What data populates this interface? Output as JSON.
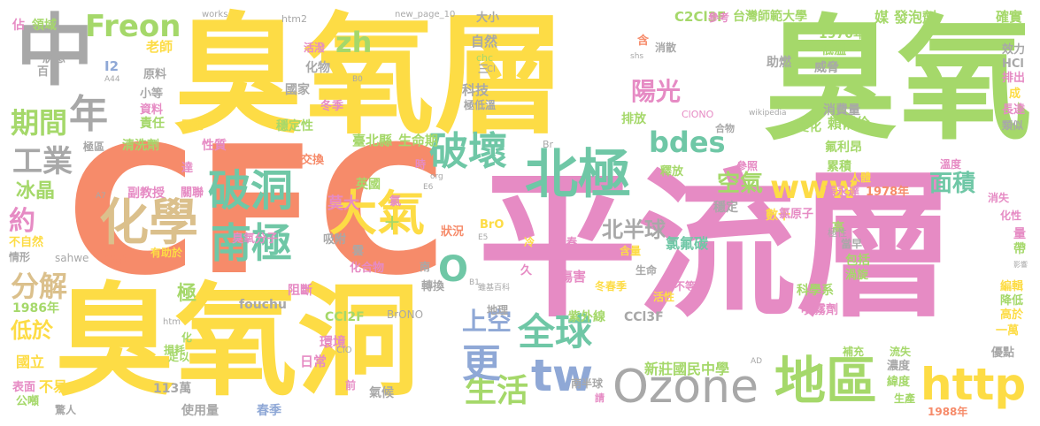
{
  "palette": {
    "yellow": "#fddc45",
    "green": "#a5d86a",
    "pink": "#e68bc4",
    "orange": "#f68b6a",
    "gray": "#a8a8a8",
    "blue": "#8fa8d6",
    "teal": "#6fc7a6",
    "tan": "#dbc08c"
  },
  "words": [
    {
      "text": "臭氧層",
      "c": "yellow"
    },
    {
      "text": "臭氧",
      "c": "green"
    },
    {
      "text": "CFC",
      "c": "orange"
    },
    {
      "text": "平流層",
      "c": "pink"
    },
    {
      "text": "臭氧洞",
      "c": "yellow"
    },
    {
      "text": "中",
      "c": "gray"
    },
    {
      "text": "年",
      "c": "gray"
    },
    {
      "text": "期間",
      "c": "green"
    },
    {
      "text": "工業",
      "c": "gray"
    },
    {
      "text": "化學",
      "c": "tan"
    },
    {
      "text": "破洞",
      "c": "teal"
    },
    {
      "text": "南極",
      "c": "teal"
    },
    {
      "text": "大氣",
      "c": "yellow"
    },
    {
      "text": "破壞",
      "c": "teal"
    },
    {
      "text": "北極",
      "c": "teal"
    },
    {
      "text": "全球",
      "c": "teal"
    },
    {
      "text": "Ozone",
      "c": "gray"
    },
    {
      "text": "tw",
      "c": "blue"
    },
    {
      "text": "www",
      "c": "yellow"
    },
    {
      "text": "http",
      "c": "yellow"
    },
    {
      "text": "地區",
      "c": "green"
    },
    {
      "text": "Freon",
      "c": "green"
    },
    {
      "text": "bdes",
      "c": "teal"
    },
    {
      "text": "zh",
      "c": "green"
    },
    {
      "text": "陽光",
      "c": "pink"
    },
    {
      "text": "生活",
      "c": "green"
    },
    {
      "text": "更",
      "c": "blue"
    },
    {
      "text": "上空",
      "c": "blue"
    },
    {
      "text": "冰晶",
      "c": "green"
    },
    {
      "text": "約",
      "c": "pink"
    },
    {
      "text": "分解",
      "c": "tan"
    },
    {
      "text": "低於",
      "c": "yellow"
    },
    {
      "text": "面積",
      "c": "teal"
    },
    {
      "text": "空氣",
      "c": "green"
    },
    {
      "text": "O",
      "c": "teal"
    },
    {
      "text": "北半球",
      "c": "gray"
    },
    {
      "text": "新莊國民中學",
      "c": "green"
    },
    {
      "text": "台灣師範大學",
      "c": "green"
    },
    {
      "text": "C2Cl3F",
      "c": "green"
    },
    {
      "text": "媒",
      "c": "green"
    },
    {
      "text": "發泡劑",
      "c": "green"
    },
    {
      "text": "確實",
      "c": "green"
    },
    {
      "text": "領域",
      "c": "green"
    },
    {
      "text": "老師",
      "c": "yellow"
    },
    {
      "text": "自然",
      "c": "gray"
    },
    {
      "text": "科技",
      "c": "gray"
    },
    {
      "text": "國家",
      "c": "gray"
    },
    {
      "text": "化物",
      "c": "gray"
    },
    {
      "text": "臺北縣",
      "c": "green"
    },
    {
      "text": "生命期",
      "c": "green"
    },
    {
      "text": "賴俐伶",
      "c": "green"
    },
    {
      "text": "氟利昂",
      "c": "green"
    },
    {
      "text": "排放",
      "c": "green"
    },
    {
      "text": "變化",
      "c": "green"
    },
    {
      "text": "消費量",
      "c": "gray"
    },
    {
      "text": "威脅",
      "c": "gray"
    },
    {
      "text": "助燃",
      "c": "gray"
    },
    {
      "text": "低溫",
      "c": "green"
    },
    {
      "text": "1970年",
      "c": "green"
    },
    {
      "text": "累積",
      "c": "green"
    },
    {
      "text": "人體",
      "c": "yellow"
    },
    {
      "text": "1978年",
      "c": "orange"
    },
    {
      "text": "張永達",
      "c": "pink"
    },
    {
      "text": "穩定",
      "c": "gray"
    },
    {
      "text": "數十",
      "c": "yellow"
    },
    {
      "text": "氯原子",
      "c": "pink"
    },
    {
      "text": "氯氟碳",
      "c": "teal"
    },
    {
      "text": "高",
      "c": "green"
    },
    {
      "text": "包括",
      "c": "green"
    },
    {
      "text": "渦旋",
      "c": "green"
    },
    {
      "text": "科學系",
      "c": "green"
    },
    {
      "text": "噴霧劑",
      "c": "pink"
    },
    {
      "text": "紫外線",
      "c": "green"
    },
    {
      "text": "CCl3F",
      "c": "gray"
    },
    {
      "text": "傷害",
      "c": "pink"
    },
    {
      "text": "冬春季",
      "c": "yellow"
    },
    {
      "text": "南半球",
      "c": "gray"
    },
    {
      "text": "氣候",
      "c": "gray"
    },
    {
      "text": "使用量",
      "c": "gray"
    },
    {
      "text": "春季",
      "c": "blue"
    },
    {
      "text": "113萬",
      "c": "gray"
    },
    {
      "text": "日常",
      "c": "pink"
    },
    {
      "text": "環境",
      "c": "pink"
    },
    {
      "text": "CCl2F",
      "c": "green"
    },
    {
      "text": "阻斷",
      "c": "pink"
    },
    {
      "text": "fouchu",
      "c": "gray"
    },
    {
      "text": "臭氧分子",
      "c": "pink"
    },
    {
      "text": "莫大",
      "c": "pink"
    },
    {
      "text": "吸附",
      "c": "gray"
    },
    {
      "text": "英國",
      "c": "green"
    },
    {
      "text": "副教授",
      "c": "pink"
    },
    {
      "text": "關聯",
      "c": "pink"
    },
    {
      "text": "清洗劑",
      "c": "green"
    },
    {
      "text": "性質",
      "c": "pink"
    },
    {
      "text": "穩定性",
      "c": "green"
    },
    {
      "text": "交換",
      "c": "orange"
    },
    {
      "text": "冬季",
      "c": "pink"
    },
    {
      "text": "照射",
      "c": "yellow"
    },
    {
      "text": "責任",
      "c": "green"
    },
    {
      "text": "資料",
      "c": "pink"
    },
    {
      "text": "小等",
      "c": "gray"
    },
    {
      "text": "原料",
      "c": "gray"
    },
    {
      "text": "百",
      "c": "gray"
    },
    {
      "text": "狀態",
      "c": "gray"
    },
    {
      "text": "佔",
      "c": "pink"
    },
    {
      "text": "1986年",
      "c": "green"
    },
    {
      "text": "國立",
      "c": "yellow"
    },
    {
      "text": "表面",
      "c": "pink"
    },
    {
      "text": "不易",
      "c": "yellow"
    },
    {
      "text": "公噸",
      "c": "green"
    },
    {
      "text": "驚人",
      "c": "gray"
    },
    {
      "text": "損耗",
      "c": "green"
    },
    {
      "text": "不自然",
      "c": "yellow"
    },
    {
      "text": "情形",
      "c": "gray"
    },
    {
      "text": "用品",
      "c": "orange"
    },
    {
      "text": "有助於",
      "c": "yellow"
    },
    {
      "text": "sahwe",
      "c": "gray"
    },
    {
      "text": "極區",
      "c": "gray"
    },
    {
      "text": "達",
      "c": "pink"
    },
    {
      "text": "極",
      "c": "green"
    },
    {
      "text": "足以",
      "c": "green"
    },
    {
      "text": "化合物",
      "c": "pink"
    },
    {
      "text": "雲",
      "c": "gray"
    },
    {
      "text": "十",
      "c": "green"
    },
    {
      "text": "氯",
      "c": "pink"
    },
    {
      "text": "狀況",
      "c": "orange"
    },
    {
      "text": "久",
      "c": "pink"
    },
    {
      "text": "轉換",
      "c": "gray"
    },
    {
      "text": "南",
      "c": "gray"
    },
    {
      "text": "請",
      "c": "pink"
    },
    {
      "text": "前",
      "c": "pink"
    },
    {
      "text": "地理",
      "c": "gray"
    },
    {
      "text": "冷",
      "c": "yellow"
    },
    {
      "text": "春",
      "c": "pink"
    },
    {
      "text": "含量",
      "c": "yellow"
    },
    {
      "text": "生命",
      "c": "gray"
    },
    {
      "text": "活性",
      "c": "yellow"
    },
    {
      "text": "不等",
      "c": "pink"
    },
    {
      "text": "釋放",
      "c": "green"
    },
    {
      "text": "參照",
      "c": "pink"
    },
    {
      "text": "溫度",
      "c": "pink"
    },
    {
      "text": "消失",
      "c": "pink"
    },
    {
      "text": "化性",
      "c": "pink"
    },
    {
      "text": "帶",
      "c": "green"
    },
    {
      "text": "量",
      "c": "pink"
    },
    {
      "text": "編輯",
      "c": "yellow"
    },
    {
      "text": "降低",
      "c": "green"
    },
    {
      "text": "高於",
      "c": "yellow"
    },
    {
      "text": "一萬",
      "c": "yellow"
    },
    {
      "text": "優點",
      "c": "gray"
    },
    {
      "text": "流失",
      "c": "green"
    },
    {
      "text": "補充",
      "c": "green"
    },
    {
      "text": "濃度",
      "c": "gray"
    },
    {
      "text": "緯度",
      "c": "green"
    },
    {
      "text": "生產",
      "c": "green"
    },
    {
      "text": "1988年",
      "c": "orange"
    },
    {
      "text": "當早",
      "c": "gray"
    },
    {
      "text": "效力",
      "c": "gray"
    },
    {
      "text": "HCl",
      "c": "gray"
    },
    {
      "text": "排出",
      "c": "pink"
    },
    {
      "text": "成",
      "c": "yellow"
    },
    {
      "text": "長達",
      "c": "pink"
    },
    {
      "text": "類似",
      "c": "gray"
    },
    {
      "text": "合物",
      "c": "gray"
    },
    {
      "text": "消散",
      "c": "gray"
    },
    {
      "text": "含",
      "c": "orange"
    },
    {
      "text": "參考",
      "c": "pink"
    },
    {
      "text": "活潑",
      "c": "pink"
    },
    {
      "text": "大小",
      "c": "gray"
    },
    {
      "text": "htm2",
      "c": "gray"
    },
    {
      "text": "works",
      "c": "gray"
    },
    {
      "text": "new_page_10",
      "c": "gray"
    },
    {
      "text": "I2",
      "c": "blue"
    },
    {
      "text": "A44",
      "c": "gray"
    },
    {
      "text": "B0",
      "c": "gray"
    },
    {
      "text": "chc",
      "c": "green"
    },
    {
      "text": "Cl",
      "c": "gray"
    },
    {
      "text": "三",
      "c": "gray"
    },
    {
      "text": "極低溫",
      "c": "gray"
    },
    {
      "text": "shs",
      "c": "gray"
    },
    {
      "text": "wikipedia",
      "c": "gray"
    },
    {
      "text": "ClONO",
      "c": "pink"
    },
    {
      "text": "Br",
      "c": "gray"
    },
    {
      "text": "BrO",
      "c": "yellow"
    },
    {
      "text": "BrONO",
      "c": "gray"
    },
    {
      "text": "B1",
      "c": "gray"
    },
    {
      "text": "E5",
      "c": "gray"
    },
    {
      "text": "E6",
      "c": "gray"
    },
    {
      "text": "A7",
      "c": "gray"
    },
    {
      "text": "時",
      "c": "pink"
    },
    {
      "text": "org",
      "c": "gray"
    },
    {
      "text": "雖基百科",
      "c": "gray"
    },
    {
      "text": "ClO",
      "c": "gray"
    },
    {
      "text": "htm",
      "c": "gray"
    },
    {
      "text": "化",
      "c": "green"
    },
    {
      "text": "AD",
      "c": "gray"
    },
    {
      "text": "影響",
      "c": "gray"
    },
    {
      "text": "極性",
      "c": "gray"
    }
  ]
}
